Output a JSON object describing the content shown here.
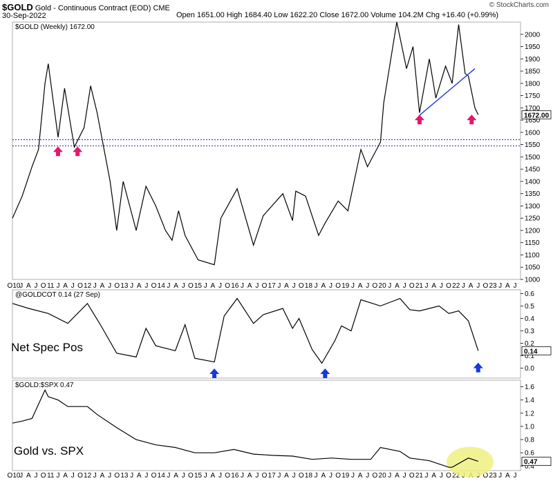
{
  "header": {
    "symbol": "$GOLD",
    "description": "Gold - Continuous Contract (EOD)",
    "exchange": "CME",
    "date": "30-Sep-2022",
    "ohlc": "Open 1651.00  High 1684.40  Low 1622.20  Close 1672.00  Volume 104.2M  Chg +16.40 (+0.99%)",
    "watermark": "© StockCharts.com"
  },
  "colors": {
    "price_line": "#000000",
    "trendline": "#3344dd",
    "support_lines": "#2222aa",
    "red_arrow": "#e5176a",
    "blue_arrow": "#1738e0",
    "highlight": "#eef080"
  },
  "x_axis_labels": [
    "O10",
    "J",
    "A",
    "J",
    "O",
    "11",
    "J",
    "A",
    "J",
    "O",
    "12",
    "J",
    "A",
    "J",
    "O",
    "13",
    "J",
    "A",
    "J",
    "O",
    "14",
    "J",
    "A",
    "J",
    "O",
    "15",
    "J",
    "A",
    "J",
    "O",
    "16",
    "J",
    "A",
    "J",
    "O",
    "17",
    "J",
    "A",
    "J",
    "O",
    "18",
    "J",
    "A",
    "J",
    "O",
    "19",
    "J",
    "A",
    "J",
    "O",
    "20",
    "J",
    "A",
    "J",
    "O",
    "21",
    "J",
    "A",
    "J",
    "O",
    "22",
    "J",
    "A",
    "J",
    "O",
    "23",
    "J",
    "A",
    "J"
  ],
  "chart_data": [
    {
      "type": "line",
      "title": "$GOLD (Weekly) 1672.00",
      "series": [
        {
          "name": "$GOLD (Weekly)",
          "x": [
            "2010-10",
            "2011-01",
            "2011-04",
            "2011-06",
            "2011-08",
            "2011-09",
            "2011-12",
            "2012-02",
            "2012-05",
            "2012-08",
            "2012-10",
            "2012-12",
            "2013-04",
            "2013-06",
            "2013-08",
            "2013-12",
            "2014-03",
            "2014-06",
            "2014-09",
            "2014-11",
            "2015-01",
            "2015-03",
            "2015-07",
            "2015-12",
            "2016-02",
            "2016-07",
            "2016-12",
            "2017-03",
            "2017-09",
            "2017-12",
            "2018-01",
            "2018-04",
            "2018-08",
            "2018-10",
            "2019-02",
            "2019-05",
            "2019-09",
            "2019-11",
            "2020-03",
            "2020-04",
            "2020-08",
            "2020-11",
            "2021-01",
            "2021-03",
            "2021-06",
            "2021-08",
            "2021-11",
            "2022-01",
            "2022-03",
            "2022-05",
            "2022-06",
            "2022-08",
            "2022-09"
          ],
          "values": [
            1250,
            1340,
            1460,
            1530,
            1800,
            1880,
            1580,
            1780,
            1540,
            1620,
            1790,
            1680,
            1400,
            1200,
            1400,
            1200,
            1380,
            1300,
            1200,
            1160,
            1280,
            1180,
            1080,
            1060,
            1250,
            1370,
            1140,
            1260,
            1350,
            1240,
            1360,
            1340,
            1180,
            1230,
            1320,
            1280,
            1530,
            1460,
            1560,
            1720,
            2050,
            1860,
            1950,
            1680,
            1900,
            1740,
            1870,
            1800,
            2040,
            1840,
            1830,
            1700,
            1672
          ]
        }
      ],
      "ylim": [
        1000,
        2050
      ],
      "yticks": [
        1000,
        1050,
        1100,
        1150,
        1200,
        1250,
        1300,
        1350,
        1400,
        1450,
        1500,
        1550,
        1600,
        1650,
        1700,
        1750,
        1800,
        1850,
        1900,
        1950,
        2000
      ],
      "last_value_label": "1672.00",
      "support_levels": [
        1570,
        1545
      ],
      "trendline": {
        "x": [
          "2021-03",
          "2022-08"
        ],
        "values": [
          1670,
          1860
        ]
      },
      "annotations": [
        {
          "type": "red-arrow",
          "x": "2011-12"
        },
        {
          "type": "red-arrow",
          "x": "2012-06"
        },
        {
          "type": "red-arrow",
          "x": "2021-03"
        },
        {
          "type": "red-arrow",
          "x": "2022-07"
        }
      ]
    },
    {
      "type": "line",
      "title": "@GOLDCOT 0.14 (27 Sep)",
      "label": "Net Spec Pos",
      "series": [
        {
          "name": "@GOLDCOT",
          "x": [
            "2010-10",
            "2011-03",
            "2011-09",
            "2012-03",
            "2012-09",
            "2013-01",
            "2013-06",
            "2013-12",
            "2014-03",
            "2014-06",
            "2014-12",
            "2015-03",
            "2015-06",
            "2015-12",
            "2016-03",
            "2016-07",
            "2016-12",
            "2017-03",
            "2017-09",
            "2017-12",
            "2018-02",
            "2018-06",
            "2018-09",
            "2019-01",
            "2019-03",
            "2019-06",
            "2019-09",
            "2020-03",
            "2020-06",
            "2020-09",
            "2020-12",
            "2021-03",
            "2021-06",
            "2021-09",
            "2021-12",
            "2022-03",
            "2022-06",
            "2022-09"
          ],
          "values": [
            0.52,
            0.48,
            0.44,
            0.36,
            0.52,
            0.35,
            0.12,
            0.09,
            0.32,
            0.18,
            0.14,
            0.35,
            0.08,
            0.05,
            0.42,
            0.56,
            0.36,
            0.43,
            0.48,
            0.32,
            0.4,
            0.15,
            0.04,
            0.22,
            0.34,
            0.3,
            0.55,
            0.5,
            0.53,
            0.56,
            0.47,
            0.46,
            0.48,
            0.5,
            0.44,
            0.46,
            0.38,
            0.14
          ]
        }
      ],
      "ylim": [
        -0.08,
        0.63
      ],
      "yticks": [
        0.0,
        0.1,
        0.2,
        0.3,
        0.4,
        0.5,
        0.6
      ],
      "ytick_labels": [
        "0.0",
        "0.1",
        "0.2",
        "0.3",
        "0.4",
        "0.5",
        "0.6"
      ],
      "last_value_label": "0.14",
      "annotations": [
        {
          "type": "blue-arrow",
          "x": "2015-12"
        },
        {
          "type": "blue-arrow",
          "x": "2018-10"
        },
        {
          "type": "blue-arrow",
          "x": "2022-09"
        }
      ]
    },
    {
      "type": "line",
      "title": "$GOLD:$SPX 0.47",
      "label": "Gold vs. SPX",
      "series": [
        {
          "name": "$GOLD:$SPX",
          "x": [
            "2010-10",
            "2011-01",
            "2011-04",
            "2011-08",
            "2011-09",
            "2011-12",
            "2012-03",
            "2012-09",
            "2012-12",
            "2013-06",
            "2013-12",
            "2014-06",
            "2014-12",
            "2015-06",
            "2015-12",
            "2016-06",
            "2016-12",
            "2017-06",
            "2017-12",
            "2018-06",
            "2018-12",
            "2019-06",
            "2019-12",
            "2020-03",
            "2020-09",
            "2020-12",
            "2021-06",
            "2021-12",
            "2022-01",
            "2022-06",
            "2022-09"
          ],
          "values": [
            1.05,
            1.08,
            1.12,
            1.55,
            1.45,
            1.4,
            1.3,
            1.3,
            1.18,
            0.98,
            0.8,
            0.72,
            0.68,
            0.6,
            0.6,
            0.65,
            0.58,
            0.56,
            0.55,
            0.5,
            0.52,
            0.5,
            0.5,
            0.68,
            0.62,
            0.52,
            0.48,
            0.38,
            0.38,
            0.52,
            0.47
          ]
        }
      ],
      "ylim": [
        0.33,
        1.7
      ],
      "yticks": [
        0.4,
        0.6,
        0.8,
        1.0,
        1.2,
        1.4,
        1.6
      ],
      "ytick_labels": [
        "0.4",
        "0.6",
        "0.8",
        "1.0",
        "1.2",
        "1.4",
        "1.6"
      ],
      "last_value_label": "0.47",
      "highlight": {
        "x": [
          "2022-01",
          "2022-12"
        ]
      }
    }
  ]
}
